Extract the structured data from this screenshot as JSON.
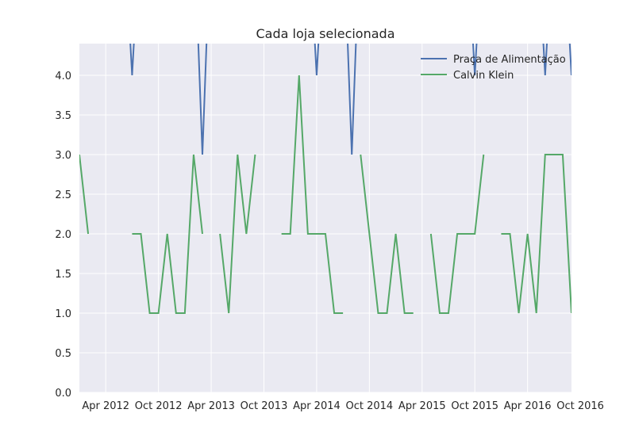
{
  "colors": {
    "plot_background": "#EAEAF2",
    "grid": "#FFFFFF",
    "series1": "#4C72B0",
    "series2": "#55A868",
    "text": "#262626"
  },
  "chart_data": {
    "type": "line",
    "title": "Cada loja selecionada",
    "xlabel": "",
    "ylabel": "",
    "x_axis_kind": "monthly dates",
    "xlim": [
      "2012-01",
      "2016-09"
    ],
    "ylim": [
      0,
      4.4
    ],
    "grid": true,
    "legend_position": "top-right",
    "x_ticks": [
      {
        "date": "2012-04",
        "label": "Apr 2012"
      },
      {
        "date": "2012-10",
        "label": "Oct 2012"
      },
      {
        "date": "2013-04",
        "label": "Apr 2013"
      },
      {
        "date": "2013-10",
        "label": "Oct 2013"
      },
      {
        "date": "2014-04",
        "label": "Apr 2014"
      },
      {
        "date": "2014-10",
        "label": "Oct 2014"
      },
      {
        "date": "2015-04",
        "label": "Apr 2015"
      },
      {
        "date": "2015-10",
        "label": "Oct 2015"
      },
      {
        "date": "2016-04",
        "label": "Apr 2016"
      },
      {
        "date": "2016-10",
        "label": "Oct 2016"
      }
    ],
    "y_ticks": [
      "0.0",
      "0.5",
      "1.0",
      "1.5",
      "2.0",
      "2.5",
      "3.0",
      "3.5",
      "4.0"
    ],
    "series": [
      {
        "name": "Praça de Alimentação",
        "color": "#4C72B0",
        "points": [
          [
            "2012-06",
            6
          ],
          [
            "2012-07",
            4
          ],
          [
            "2012-08",
            6
          ],
          null,
          [
            "2013-02",
            6
          ],
          [
            "2013-03",
            3
          ],
          [
            "2013-04",
            6
          ],
          null,
          [
            "2014-03",
            6
          ],
          [
            "2014-04",
            4
          ],
          [
            "2014-05",
            6
          ],
          null,
          [
            "2014-07",
            6
          ],
          [
            "2014-08",
            3
          ],
          [
            "2014-09",
            6
          ],
          null,
          [
            "2015-09",
            6
          ],
          [
            "2015-10",
            4
          ],
          [
            "2015-11",
            6
          ],
          null,
          [
            "2016-05",
            6
          ],
          [
            "2016-06",
            4
          ],
          [
            "2016-07",
            6
          ],
          null,
          [
            "2016-08",
            6
          ],
          [
            "2016-09",
            4
          ]
        ]
      },
      {
        "name": "Calvin Klein",
        "color": "#55A868",
        "points": [
          [
            "2012-01",
            3
          ],
          [
            "2012-02",
            2
          ],
          null,
          [
            "2012-07",
            2
          ],
          [
            "2012-08",
            2
          ],
          [
            "2012-09",
            1
          ],
          [
            "2012-10",
            1
          ],
          [
            "2012-11",
            2
          ],
          [
            "2012-12",
            1
          ],
          [
            "2013-01",
            1
          ],
          [
            "2013-02",
            3
          ],
          [
            "2013-03",
            2
          ],
          null,
          [
            "2013-05",
            2
          ],
          [
            "2013-06",
            1
          ],
          [
            "2013-07",
            3
          ],
          [
            "2013-08",
            2
          ],
          [
            "2013-09",
            3
          ],
          null,
          [
            "2013-12",
            2
          ],
          [
            "2014-01",
            2
          ],
          [
            "2014-02",
            4
          ],
          [
            "2014-03",
            2
          ],
          [
            "2014-04",
            2
          ],
          [
            "2014-05",
            2
          ],
          [
            "2014-06",
            1
          ],
          [
            "2014-07",
            1
          ],
          null,
          [
            "2014-09",
            3
          ],
          [
            "2014-10",
            2
          ],
          [
            "2014-11",
            1
          ],
          [
            "2014-12",
            1
          ],
          [
            "2015-01",
            2
          ],
          [
            "2015-02",
            1
          ],
          [
            "2015-03",
            1
          ],
          null,
          [
            "2015-05",
            2
          ],
          [
            "2015-06",
            1
          ],
          [
            "2015-07",
            1
          ],
          [
            "2015-08",
            2
          ],
          [
            "2015-09",
            2
          ],
          [
            "2015-10",
            2
          ],
          [
            "2015-11",
            3
          ],
          null,
          [
            "2016-01",
            2
          ],
          [
            "2016-02",
            2
          ],
          [
            "2016-03",
            1
          ],
          [
            "2016-04",
            2
          ],
          [
            "2016-05",
            1
          ],
          [
            "2016-06",
            3
          ],
          [
            "2016-07",
            3
          ],
          [
            "2016-08",
            3
          ],
          [
            "2016-09",
            1
          ]
        ]
      }
    ]
  }
}
